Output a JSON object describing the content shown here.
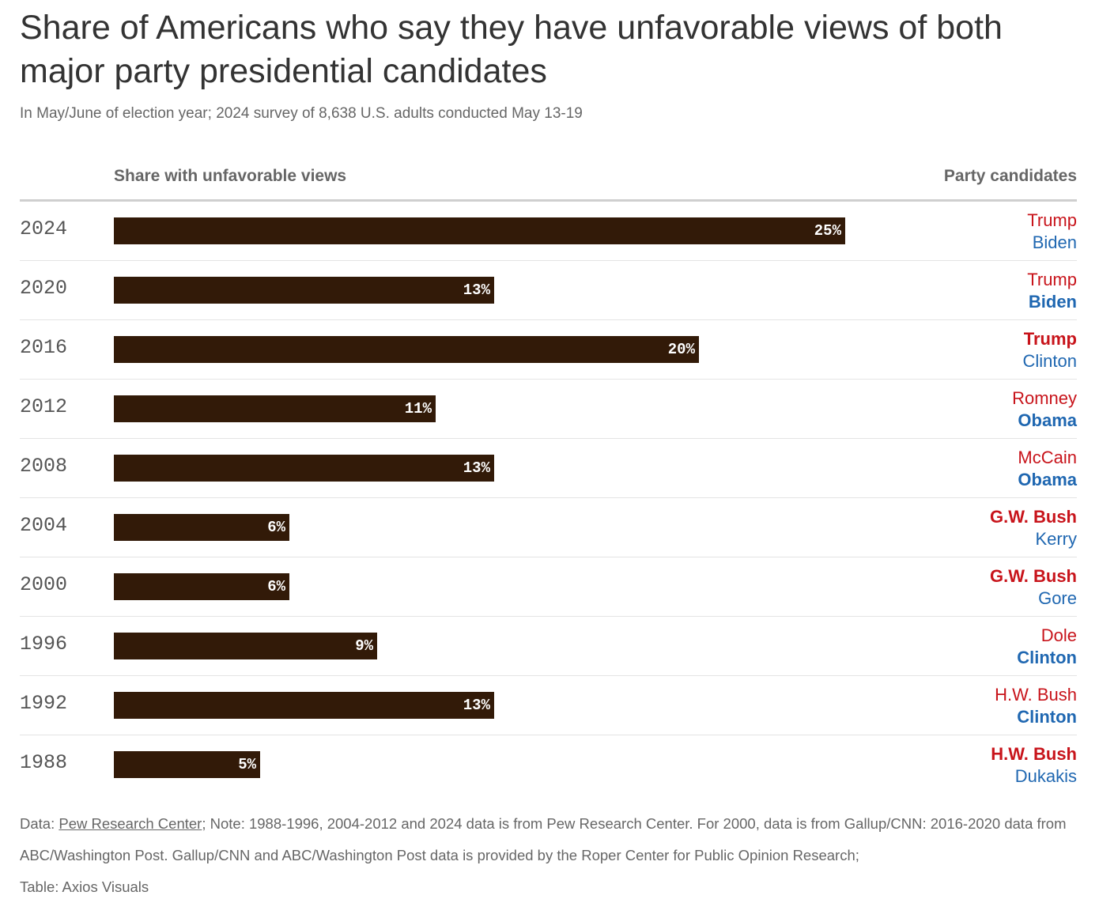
{
  "chart_data": {
    "type": "bar",
    "orientation": "horizontal",
    "title": "Share of Americans who say they have unfavorable views of both major party presidential candidates",
    "subtitle": "In May/June of election year; 2024 survey of 8,638 U.S. adults conducted May 13-19",
    "xlabel": "Share with unfavorable views",
    "right_column_label": "Party candidates",
    "xlim": [
      0,
      30
    ],
    "grid": false,
    "value_suffix": "%",
    "colors": {
      "bar": "#321a08",
      "republican": "#c8141b",
      "democrat": "#1f67b1"
    },
    "rows": [
      {
        "year": "2024",
        "value": 25,
        "label": "25%",
        "rep": "Trump",
        "dem": "Biden",
        "winner": "none"
      },
      {
        "year": "2020",
        "value": 13,
        "label": "13%",
        "rep": "Trump",
        "dem": "Biden",
        "winner": "dem"
      },
      {
        "year": "2016",
        "value": 20,
        "label": "20%",
        "rep": "Trump",
        "dem": "Clinton",
        "winner": "rep"
      },
      {
        "year": "2012",
        "value": 11,
        "label": "11%",
        "rep": "Romney",
        "dem": "Obama",
        "winner": "dem"
      },
      {
        "year": "2008",
        "value": 13,
        "label": "13%",
        "rep": "McCain",
        "dem": "Obama",
        "winner": "dem"
      },
      {
        "year": "2004",
        "value": 6,
        "label": "6%",
        "rep": "G.W. Bush",
        "dem": "Kerry",
        "winner": "rep"
      },
      {
        "year": "2000",
        "value": 6,
        "label": "6%",
        "rep": "G.W. Bush",
        "dem": "Gore",
        "winner": "rep"
      },
      {
        "year": "1996",
        "value": 9,
        "label": "9%",
        "rep": "Dole",
        "dem": "Clinton",
        "winner": "dem"
      },
      {
        "year": "1992",
        "value": 13,
        "label": "13%",
        "rep": "H.W. Bush",
        "dem": "Clinton",
        "winner": "dem"
      },
      {
        "year": "1988",
        "value": 5,
        "label": "5%",
        "rep": "H.W. Bush",
        "dem": "Dukakis",
        "winner": "rep"
      }
    ]
  },
  "footer": {
    "data_prefix": "Data: ",
    "source_link": "Pew Research Center",
    "note": "; Note: 1988-1996, 2004-2012 and 2024 data is from Pew Research Center. For 2000, data is from Gallup/CNN: 2016-2020 data from ABC/Washington Post. Gallup/CNN and ABC/Washington Post data is provided by the Roper Center for Public Opinion Research;",
    "credit": "Table: Axios Visuals"
  }
}
